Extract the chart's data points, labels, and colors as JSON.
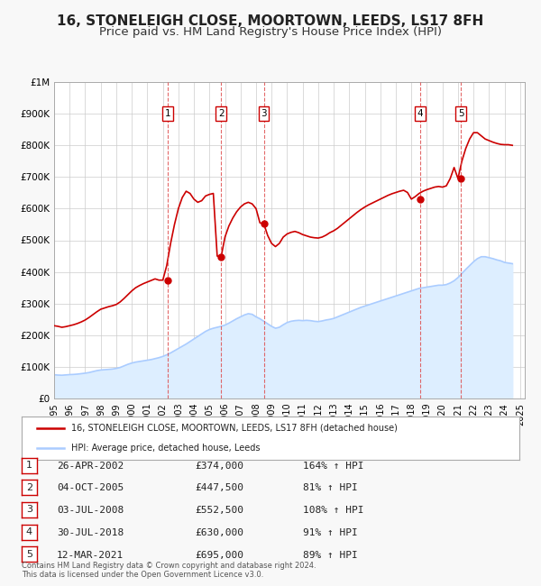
{
  "title": "16, STONELEIGH CLOSE, MOORTOWN, LEEDS, LS17 8FH",
  "subtitle": "Price paid vs. HM Land Registry's House Price Index (HPI)",
  "title_fontsize": 11,
  "subtitle_fontsize": 9.5,
  "x_start": 1995.0,
  "x_end": 2025.3,
  "y_min": 0,
  "y_max": 1000000,
  "y_ticks": [
    0,
    100000,
    200000,
    300000,
    400000,
    500000,
    600000,
    700000,
    800000,
    900000,
    1000000
  ],
  "y_tick_labels": [
    "£0",
    "£100K",
    "£200K",
    "£300K",
    "£400K",
    "£500K",
    "£600K",
    "£700K",
    "£800K",
    "£900K",
    "£1M"
  ],
  "x_ticks": [
    1995,
    1996,
    1997,
    1998,
    1999,
    2000,
    2001,
    2002,
    2003,
    2004,
    2005,
    2006,
    2007,
    2008,
    2009,
    2010,
    2011,
    2012,
    2013,
    2014,
    2015,
    2016,
    2017,
    2018,
    2019,
    2020,
    2021,
    2022,
    2023,
    2024,
    2025
  ],
  "background_color": "#f8f8f8",
  "plot_bg_color": "#ffffff",
  "grid_color": "#cccccc",
  "hpi_line_color": "#aaccff",
  "hpi_fill_color": "#ddeeff",
  "price_line_color": "#cc0000",
  "sale_marker_color": "#cc0000",
  "dashed_line_color": "#dd4444",
  "legend_box_color": "#ffffff",
  "legend_border_color": "#aaaaaa",
  "transaction_border_color": "#cc0000",
  "copyright_text": "Contains HM Land Registry data © Crown copyright and database right 2024.\nThis data is licensed under the Open Government Licence v3.0.",
  "legend_label_red": "16, STONELEIGH CLOSE, MOORTOWN, LEEDS, LS17 8FH (detached house)",
  "legend_label_blue": "HPI: Average price, detached house, Leeds",
  "transactions": [
    {
      "num": 1,
      "date": "26-APR-2002",
      "price": "£374,000",
      "pct": "164% ↑ HPI",
      "x": 2002.32
    },
    {
      "num": 2,
      "date": "04-OCT-2005",
      "price": "£447,500",
      "pct": "81% ↑ HPI",
      "x": 2005.75
    },
    {
      "num": 3,
      "date": "03-JUL-2008",
      "price": "£552,500",
      "pct": "108% ↑ HPI",
      "x": 2008.5
    },
    {
      "num": 4,
      "date": "30-JUL-2018",
      "price": "£630,000",
      "pct": "91% ↑ HPI",
      "x": 2018.58
    },
    {
      "num": 5,
      "date": "12-MAR-2021",
      "price": "£695,000",
      "pct": "89% ↑ HPI",
      "x": 2021.19
    }
  ],
  "transaction_y_values": [
    374000,
    447500,
    552500,
    630000,
    695000
  ],
  "hpi_data": {
    "years": [
      1995.0,
      1995.25,
      1995.5,
      1995.75,
      1996.0,
      1996.25,
      1996.5,
      1996.75,
      1997.0,
      1997.25,
      1997.5,
      1997.75,
      1998.0,
      1998.25,
      1998.5,
      1998.75,
      1999.0,
      1999.25,
      1999.5,
      1999.75,
      2000.0,
      2000.25,
      2000.5,
      2000.75,
      2001.0,
      2001.25,
      2001.5,
      2001.75,
      2002.0,
      2002.25,
      2002.5,
      2002.75,
      2003.0,
      2003.25,
      2003.5,
      2003.75,
      2004.0,
      2004.25,
      2004.5,
      2004.75,
      2005.0,
      2005.25,
      2005.5,
      2005.75,
      2006.0,
      2006.25,
      2006.5,
      2006.75,
      2007.0,
      2007.25,
      2007.5,
      2007.75,
      2008.0,
      2008.25,
      2008.5,
      2008.75,
      2009.0,
      2009.25,
      2009.5,
      2009.75,
      2010.0,
      2010.25,
      2010.5,
      2010.75,
      2011.0,
      2011.25,
      2011.5,
      2011.75,
      2012.0,
      2012.25,
      2012.5,
      2012.75,
      2013.0,
      2013.25,
      2013.5,
      2013.75,
      2014.0,
      2014.25,
      2014.5,
      2014.75,
      2015.0,
      2015.25,
      2015.5,
      2015.75,
      2016.0,
      2016.25,
      2016.5,
      2016.75,
      2017.0,
      2017.25,
      2017.5,
      2017.75,
      2018.0,
      2018.25,
      2018.5,
      2018.75,
      2019.0,
      2019.25,
      2019.5,
      2019.75,
      2020.0,
      2020.25,
      2020.5,
      2020.75,
      2021.0,
      2021.25,
      2021.5,
      2021.75,
      2022.0,
      2022.25,
      2022.5,
      2022.75,
      2023.0,
      2023.25,
      2023.5,
      2023.75,
      2024.0,
      2024.25,
      2024.5
    ],
    "values": [
      75000,
      74000,
      73500,
      74500,
      75500,
      76000,
      77000,
      78500,
      80000,
      82000,
      85000,
      88000,
      90000,
      91000,
      92000,
      93000,
      95000,
      98000,
      103000,
      108000,
      112000,
      115000,
      117000,
      119000,
      121000,
      123000,
      126000,
      129000,
      133000,
      138000,
      144000,
      151000,
      158000,
      165000,
      172000,
      180000,
      188000,
      196000,
      204000,
      212000,
      218000,
      222000,
      225000,
      228000,
      232000,
      238000,
      245000,
      252000,
      258000,
      264000,
      268000,
      266000,
      258000,
      252000,
      244000,
      236000,
      228000,
      222000,
      225000,
      233000,
      240000,
      244000,
      246000,
      247000,
      246000,
      247000,
      246000,
      244000,
      243000,
      245000,
      248000,
      250000,
      253000,
      258000,
      263000,
      268000,
      273000,
      278000,
      283000,
      288000,
      292000,
      296000,
      300000,
      304000,
      308000,
      312000,
      316000,
      320000,
      324000,
      328000,
      332000,
      336000,
      340000,
      344000,
      348000,
      350000,
      352000,
      354000,
      356000,
      358000,
      358000,
      360000,
      365000,
      372000,
      382000,
      395000,
      408000,
      420000,
      432000,
      442000,
      448000,
      448000,
      445000,
      442000,
      438000,
      435000,
      430000,
      428000,
      426000
    ]
  },
  "price_data": {
    "years": [
      1995.0,
      1995.25,
      1995.5,
      1995.75,
      1996.0,
      1996.25,
      1996.5,
      1996.75,
      1997.0,
      1997.25,
      1997.5,
      1997.75,
      1998.0,
      1998.25,
      1998.5,
      1998.75,
      1999.0,
      1999.25,
      1999.5,
      1999.75,
      2000.0,
      2000.25,
      2000.5,
      2000.75,
      2001.0,
      2001.25,
      2001.5,
      2001.75,
      2002.0,
      2002.25,
      2002.5,
      2002.75,
      2003.0,
      2003.25,
      2003.5,
      2003.75,
      2004.0,
      2004.25,
      2004.5,
      2004.75,
      2005.0,
      2005.25,
      2005.5,
      2005.75,
      2006.0,
      2006.25,
      2006.5,
      2006.75,
      2007.0,
      2007.25,
      2007.5,
      2007.75,
      2008.0,
      2008.25,
      2008.5,
      2008.75,
      2009.0,
      2009.25,
      2009.5,
      2009.75,
      2010.0,
      2010.25,
      2010.5,
      2010.75,
      2011.0,
      2011.25,
      2011.5,
      2011.75,
      2012.0,
      2012.25,
      2012.5,
      2012.75,
      2013.0,
      2013.25,
      2013.5,
      2013.75,
      2014.0,
      2014.25,
      2014.5,
      2014.75,
      2015.0,
      2015.25,
      2015.5,
      2015.75,
      2016.0,
      2016.25,
      2016.5,
      2016.75,
      2017.0,
      2017.25,
      2017.5,
      2017.75,
      2018.0,
      2018.25,
      2018.5,
      2018.75,
      2019.0,
      2019.25,
      2019.5,
      2019.75,
      2020.0,
      2020.25,
      2020.5,
      2020.75,
      2021.0,
      2021.25,
      2021.5,
      2021.75,
      2022.0,
      2022.25,
      2022.5,
      2022.75,
      2023.0,
      2023.25,
      2023.5,
      2023.75,
      2024.0,
      2024.25,
      2024.5
    ],
    "values": [
      230000,
      228000,
      225000,
      227000,
      230000,
      233000,
      237000,
      242000,
      248000,
      256000,
      265000,
      274000,
      282000,
      286000,
      290000,
      293000,
      297000,
      305000,
      316000,
      328000,
      340000,
      350000,
      357000,
      363000,
      368000,
      373000,
      378000,
      374000,
      374000,
      420000,
      490000,
      550000,
      600000,
      635000,
      655000,
      648000,
      630000,
      620000,
      625000,
      640000,
      645000,
      648000,
      450000,
      447500,
      510000,
      545000,
      570000,
      590000,
      605000,
      615000,
      620000,
      615000,
      600000,
      555000,
      552500,
      515000,
      490000,
      480000,
      490000,
      510000,
      520000,
      525000,
      528000,
      524000,
      518000,
      514000,
      510000,
      508000,
      507000,
      510000,
      516000,
      524000,
      530000,
      538000,
      548000,
      558000,
      568000,
      578000,
      588000,
      597000,
      605000,
      612000,
      618000,
      624000,
      630000,
      636000,
      642000,
      647000,
      651000,
      655000,
      658000,
      651000,
      630000,
      638000,
      648000,
      655000,
      660000,
      664000,
      668000,
      670000,
      668000,
      672000,
      695000,
      730000,
      695000,
      750000,
      790000,
      820000,
      840000,
      840000,
      830000,
      820000,
      815000,
      810000,
      806000,
      803000,
      802000,
      802000,
      800000
    ]
  }
}
